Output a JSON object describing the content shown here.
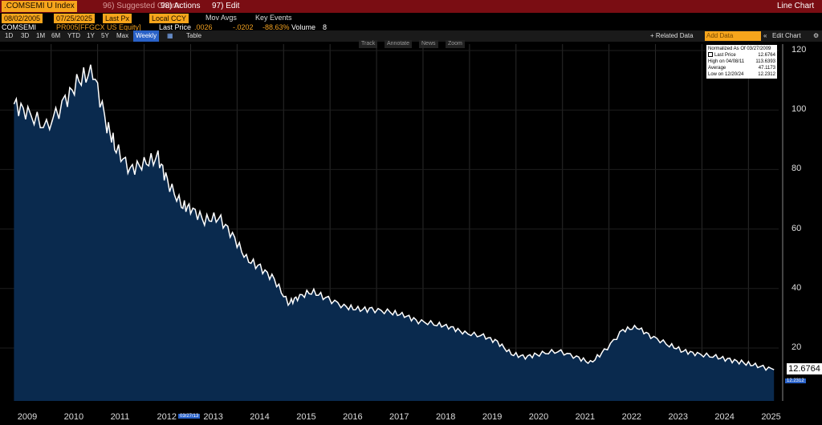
{
  "header": {
    "security": ".COMSEMI U Index",
    "suggested": "96) Suggested Charts",
    "actions": "98) Actions",
    "edit": "97) Edit",
    "chart_type": "Line Chart"
  },
  "controls": {
    "start_date": "08/02/2005",
    "end_date": "07/25/2025",
    "price_field": "Last Px",
    "currency": "Local CCY",
    "mov_avgs": "Mov Avgs",
    "key_events": "Key Events"
  },
  "series_line": {
    "ticker": "COMSEMI",
    "comparison": "PR005[FFGCX US Equity]",
    "last_price_label": "Last Price",
    "last_price": ".0026",
    "change": "-.0202",
    "change_pct": "-88.63%",
    "volume_label": "Volume",
    "volume": "8"
  },
  "periods": [
    "1D",
    "3D",
    "1M",
    "6M",
    "YTD",
    "1Y",
    "5Y",
    "Max"
  ],
  "frequency": "Weekly",
  "table_label": "Table",
  "related_data": "+ Related Data",
  "add_data_placeholder": "Add Data",
  "edit_chart": "Edit Chart",
  "tools": [
    "Track",
    "Annotate",
    "News",
    "Zoom"
  ],
  "legend": {
    "title": "Normalized As Of 03/27/2009",
    "rows": [
      {
        "label": "Last Price",
        "value": "12.6764"
      },
      {
        "label": "High on 04/08/11",
        "value": "113.6393"
      },
      {
        "label": "Average",
        "value": "47.1173"
      },
      {
        "label": "Low on 12/20/24",
        "value": "12.2312"
      }
    ]
  },
  "last_value_box": "12.6764",
  "low_tag": "12.2312",
  "date_tag": "03/27/13",
  "colors": {
    "line": "#ffffff",
    "fill": "#0a2a4e",
    "accent": "#f7a51c",
    "header": "#7a0d13"
  },
  "chart_data": {
    "type": "area",
    "y_ticks": [
      20,
      40,
      60,
      80,
      100,
      120
    ],
    "ylim": [
      0,
      120
    ],
    "x_ticks": [
      "2009",
      "2010",
      "2011",
      "2012",
      "2013",
      "2014",
      "2015",
      "2016",
      "2017",
      "2018",
      "2019",
      "2020",
      "2021",
      "2022",
      "2023",
      "2024",
      "2025"
    ],
    "x": [
      2009.2,
      2009.5,
      2009.9,
      2010.3,
      2010.6,
      2010.9,
      2011.2,
      2011.4,
      2011.7,
      2012.0,
      2012.3,
      2012.5,
      2012.8,
      2013.0,
      2013.3,
      2013.6,
      2013.9,
      2014.2,
      2014.5,
      2014.8,
      2015.1,
      2015.3,
      2015.6,
      2015.9,
      2016.3,
      2016.6,
      2016.9,
      2017.3,
      2017.6,
      2017.9,
      2018.3,
      2018.6,
      2018.9,
      2019.3,
      2019.6,
      2019.9,
      2020.2,
      2020.5,
      2020.9,
      2021.3,
      2021.6,
      2021.9,
      2022.3,
      2022.6,
      2022.9,
      2023.3,
      2023.6,
      2023.9,
      2024.3,
      2024.6,
      2024.9,
      2025.2,
      2025.55
    ],
    "values": [
      102,
      99,
      94,
      103,
      110,
      113,
      95,
      87,
      80,
      82,
      84,
      76,
      68,
      67,
      63,
      64,
      58,
      50,
      47,
      43,
      35,
      37,
      39,
      37,
      34,
      33,
      33,
      32,
      31,
      29,
      28,
      27,
      25,
      24,
      22,
      18,
      17,
      18,
      19,
      17,
      15,
      19,
      26,
      27,
      24,
      21,
      19,
      18,
      17,
      16,
      15,
      14,
      12.7
    ]
  }
}
